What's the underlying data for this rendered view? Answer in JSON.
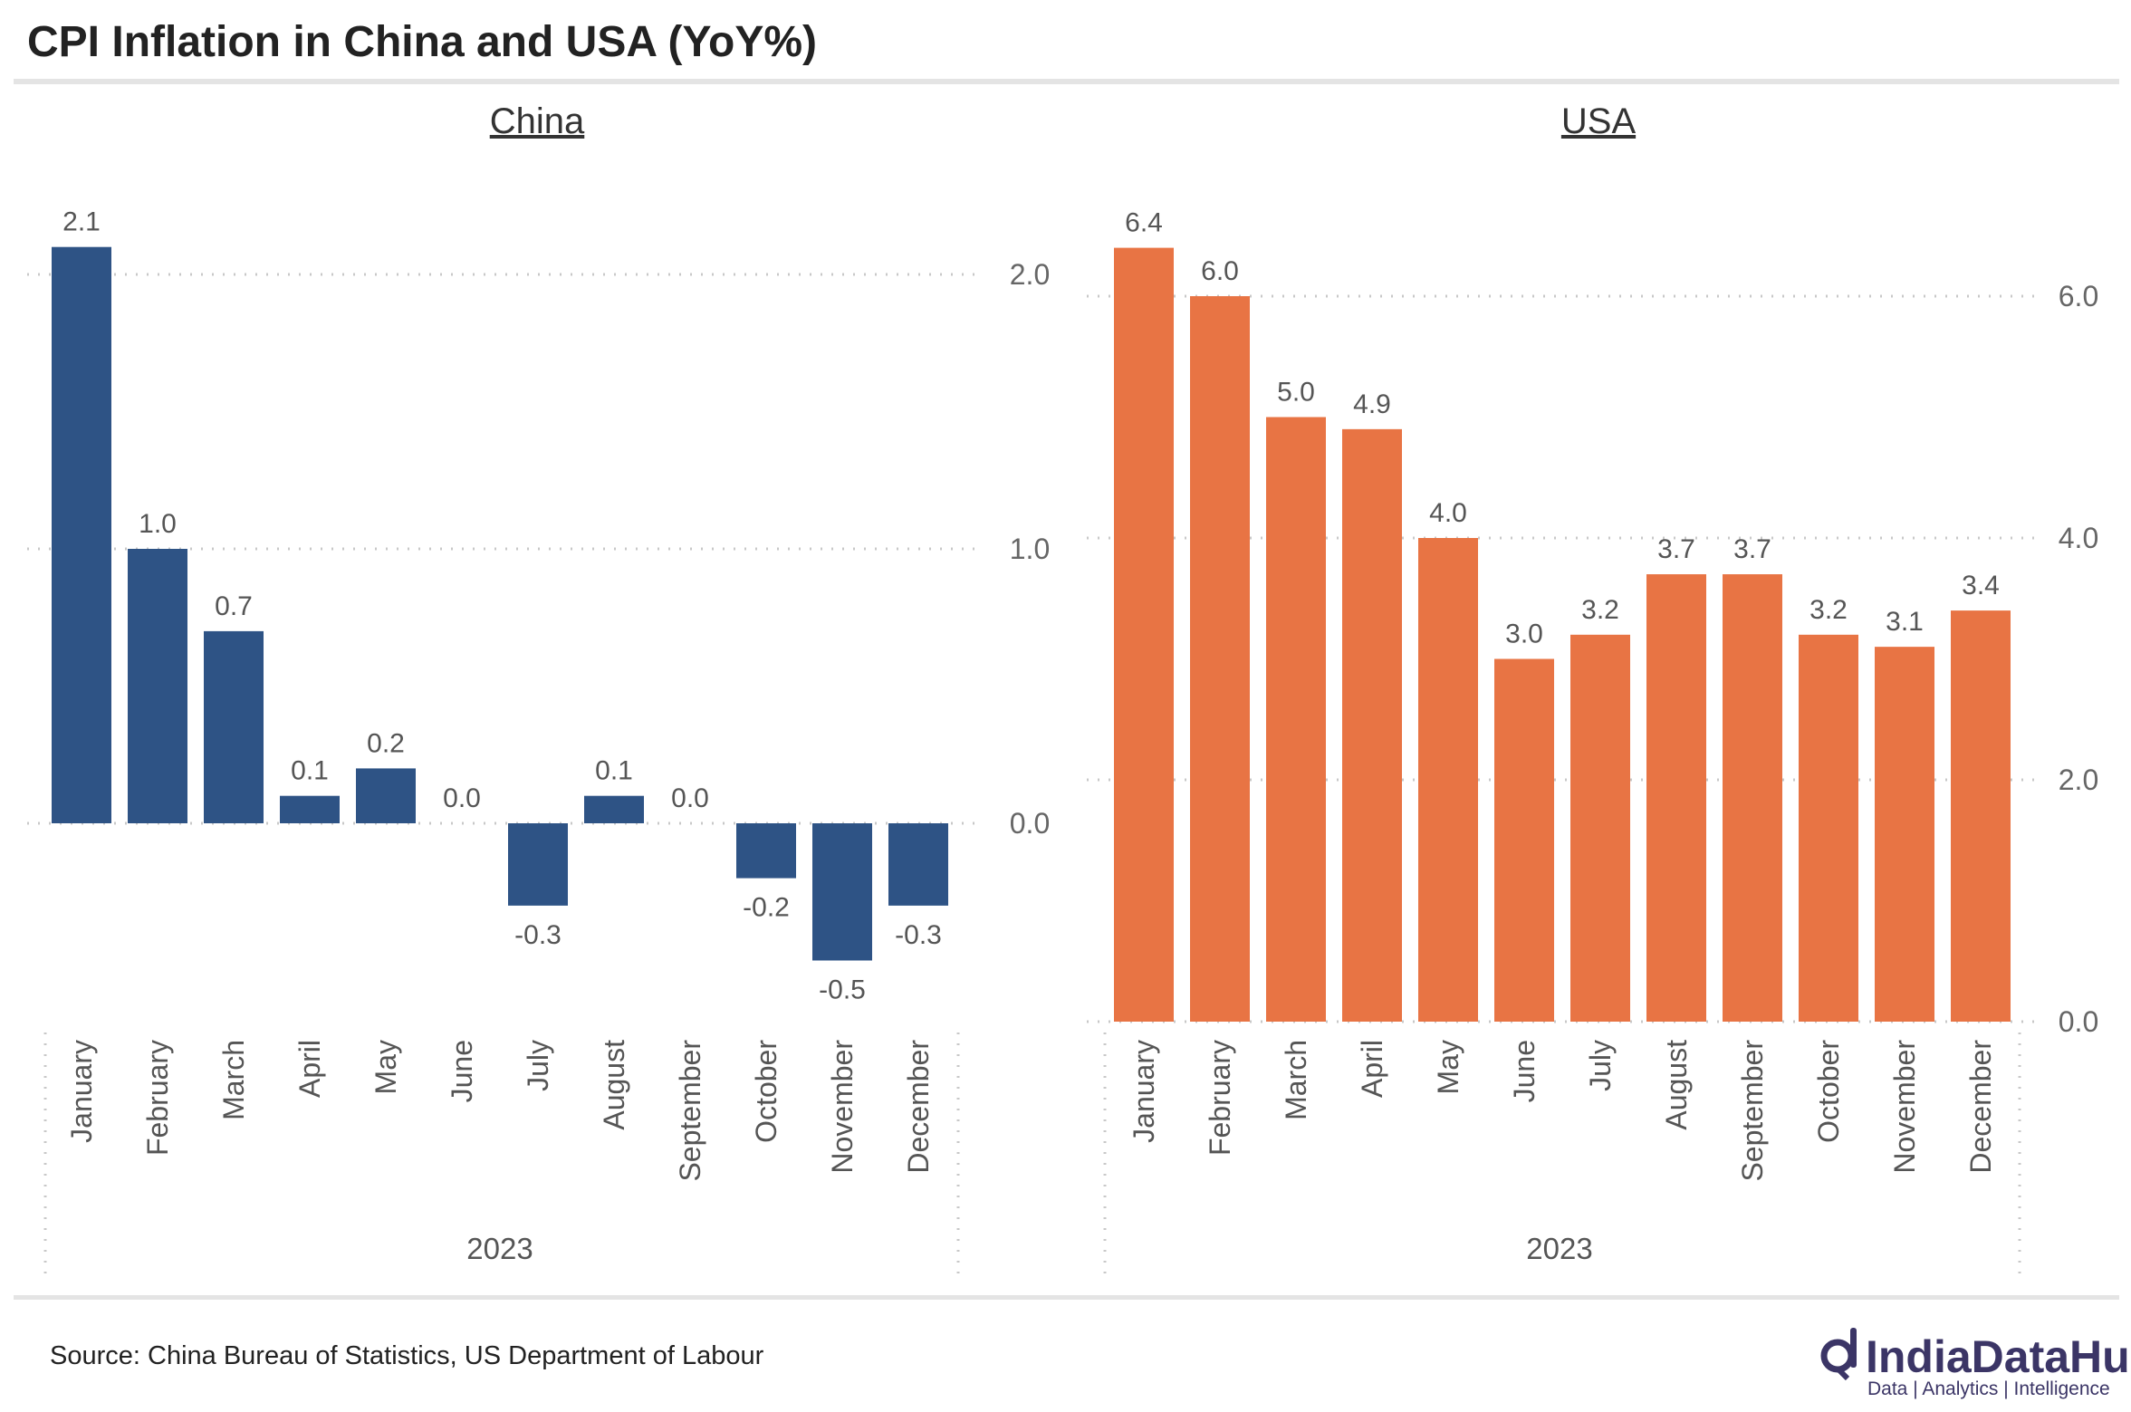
{
  "title": "CPI Inflation in China and USA (YoY%)",
  "source": "Source: China Bureau of Statistics, US Department of Labour",
  "logo": {
    "name": "IndiaDataHub",
    "tagline": "Data | Analytics | Intelligence"
  },
  "chart_data": [
    {
      "type": "bar",
      "title": "China",
      "xlabel": "2023",
      "ylabel": "",
      "color": "#2E5385",
      "categories": [
        "January",
        "February",
        "March",
        "April",
        "May",
        "June",
        "July",
        "August",
        "September",
        "October",
        "November",
        "December"
      ],
      "values": [
        2.1,
        1.0,
        0.7,
        0.1,
        0.2,
        0.0,
        -0.3,
        0.1,
        0.0,
        -0.2,
        -0.5,
        -0.3
      ],
      "value_labels": [
        "2.1",
        "1.0",
        "0.7",
        "0.1",
        "0.2",
        "0.0",
        "-0.3",
        "0.1",
        "0.0",
        "-0.2",
        "-0.5",
        "-0.3"
      ],
      "yticks": [
        0,
        1,
        2
      ],
      "ytick_labels": [
        "0.0",
        "1.0",
        "2.0"
      ],
      "ylim": [
        -0.75,
        2.2
      ],
      "grid": true
    },
    {
      "type": "bar",
      "title": "USA",
      "xlabel": "2023",
      "ylabel": "",
      "color": "#E87444",
      "categories": [
        "January",
        "February",
        "March",
        "April",
        "May",
        "June",
        "July",
        "August",
        "September",
        "October",
        "November",
        "December"
      ],
      "values": [
        6.4,
        6.0,
        5.0,
        4.9,
        4.0,
        3.0,
        3.2,
        3.7,
        3.7,
        3.2,
        3.1,
        3.4
      ],
      "value_labels": [
        "6.4",
        "6.0",
        "5.0",
        "4.9",
        "4.0",
        "3.0",
        "3.2",
        "3.7",
        "3.7",
        "3.2",
        "3.1",
        "3.4"
      ],
      "yticks": [
        0,
        2,
        4,
        6
      ],
      "ytick_labels": [
        "0.0",
        "2.0",
        "4.0",
        "6.0"
      ],
      "ylim": [
        0,
        6.6
      ],
      "grid": true
    }
  ]
}
